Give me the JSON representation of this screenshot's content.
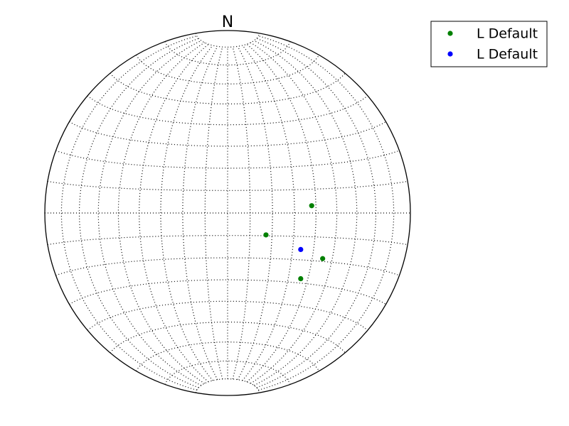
{
  "chart_data": {
    "type": "scatter",
    "projection": "equal-area stereonet (lower hemisphere)",
    "north_label": "N",
    "grid": true,
    "grid_interval_deg": 10,
    "legend_position": "top-right",
    "series": [
      {
        "name": "L Default",
        "color": "#008000",
        "points": [
          {
            "x": 0.46,
            "y": 0.04
          },
          {
            "x": 0.21,
            "y": -0.12
          },
          {
            "x": 0.52,
            "y": -0.25
          },
          {
            "x": 0.4,
            "y": -0.36
          }
        ]
      },
      {
        "name": "L Default",
        "color": "#0000ff",
        "points": [
          {
            "x": 0.4,
            "y": -0.2
          }
        ]
      }
    ]
  }
}
